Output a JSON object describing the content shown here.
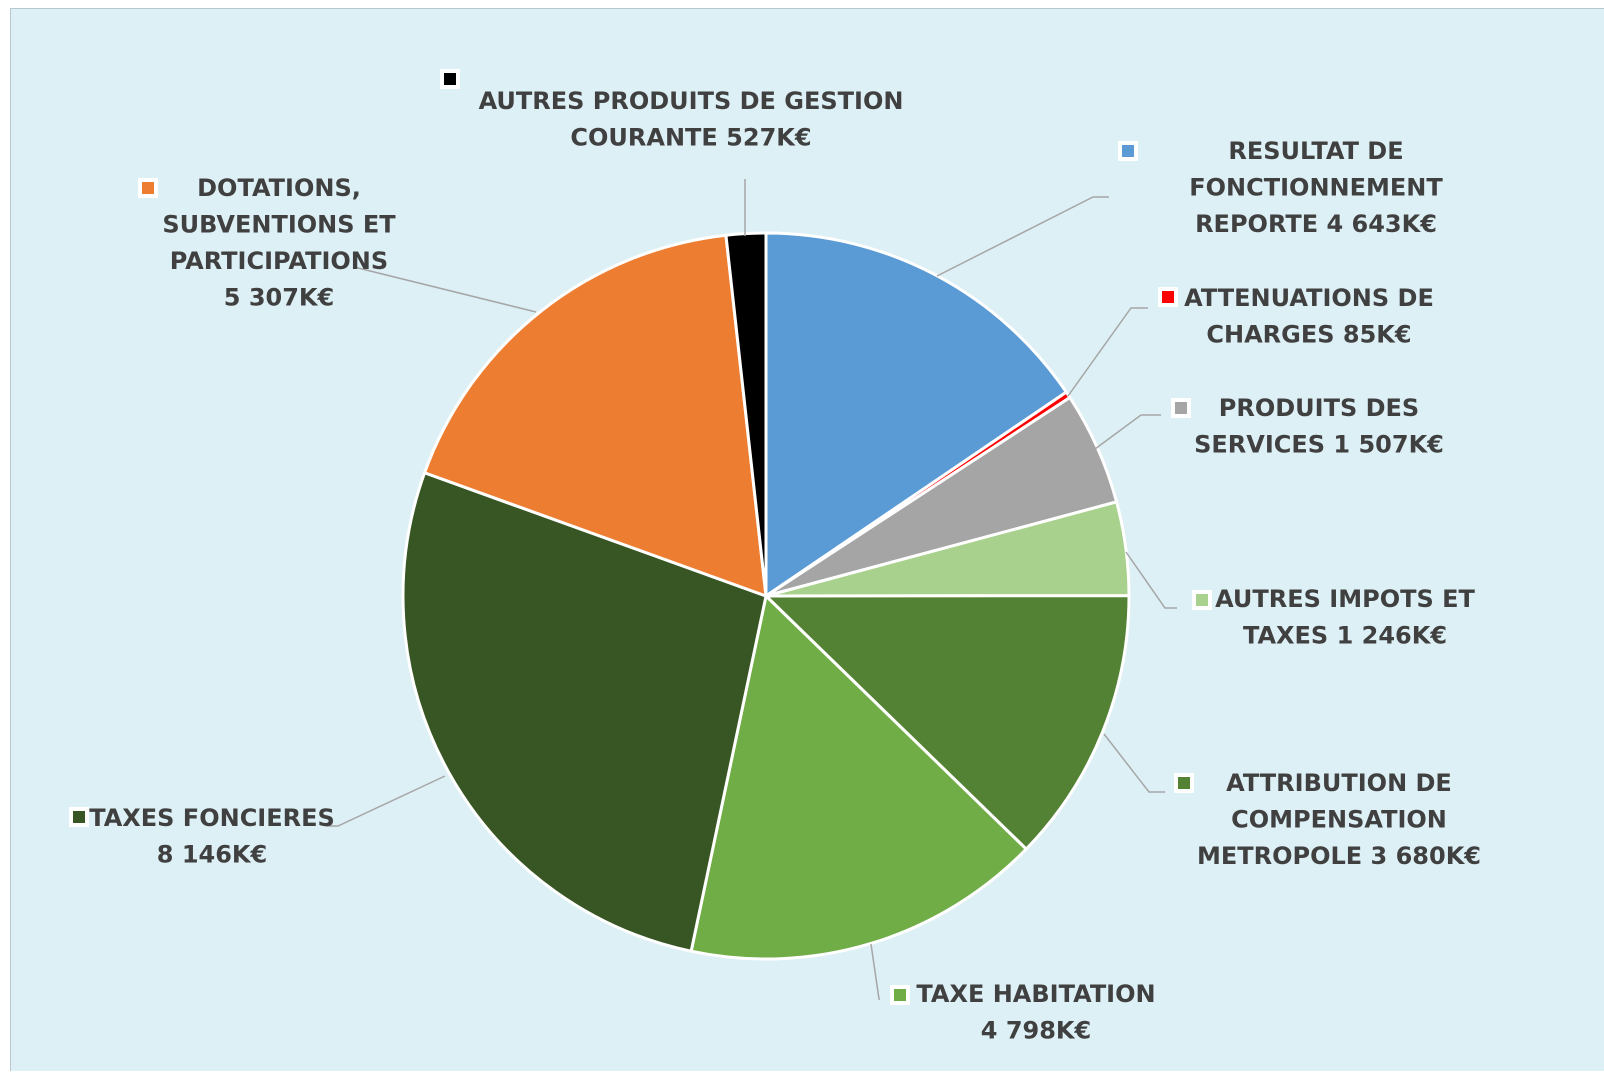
{
  "chart_data": {
    "type": "pie",
    "title": "",
    "start_angle_deg": 0,
    "slices": [
      {
        "label_lines": [
          "RESULTAT DE",
          "FONCTIONNEMENT",
          "REPORTE 4 643K€"
        ],
        "value": 4643,
        "color": "#5b9bd5"
      },
      {
        "label_lines": [
          "ATTENUATIONS DE",
          "CHARGES 85K€"
        ],
        "value": 85,
        "color": "#ff0000"
      },
      {
        "label_lines": [
          "PRODUITS DES",
          "SERVICES  1 507K€"
        ],
        "value": 1507,
        "color": "#a5a5a5"
      },
      {
        "label_lines": [
          "AUTRES IMPOTS ET",
          "TAXES 1 246K€"
        ],
        "value": 1246,
        "color": "#a9d18e"
      },
      {
        "label_lines": [
          "ATTRIBUTION DE",
          "COMPENSATION",
          "METROPOLE 3 680K€"
        ],
        "value": 3680,
        "color": "#548235"
      },
      {
        "label_lines": [
          "TAXE HABITATION",
          "4 798K€"
        ],
        "value": 4798,
        "color": "#70ad47"
      },
      {
        "label_lines": [
          "TAXES FONCIERES",
          "8 146K€"
        ],
        "value": 8146,
        "color": "#375623"
      },
      {
        "label_lines": [
          "DOTATIONS,",
          "SUBVENTIONS ET",
          "PARTICIPATIONS",
          "5 307K€"
        ],
        "value": 5307,
        "color": "#ed7d31"
      },
      {
        "label_lines": [
          "AUTRES PRODUITS DE GESTION",
          "COURANTE 527K€"
        ],
        "value": 527,
        "color": "#000000"
      }
    ]
  }
}
